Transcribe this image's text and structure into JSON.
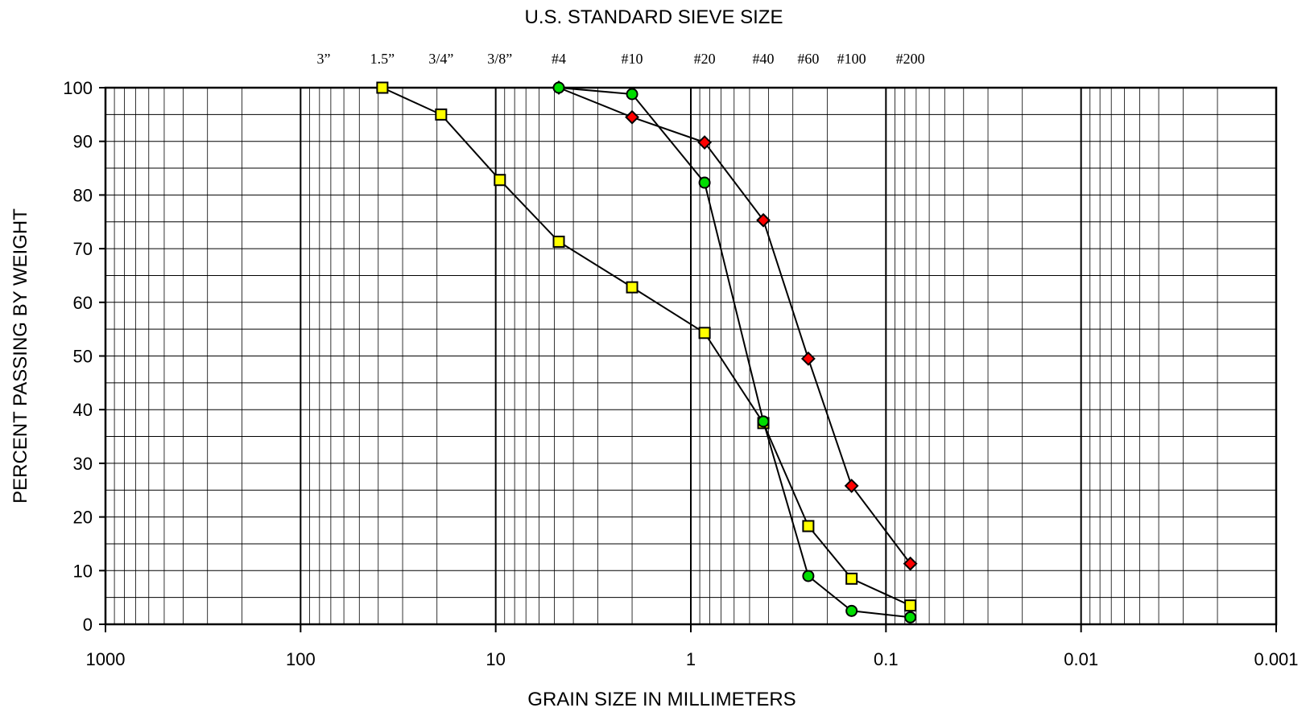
{
  "chart_data": {
    "type": "line",
    "title": "U.S. STANDARD SIEVE SIZE",
    "xlabel": "GRAIN SIZE IN MILLIMETERS",
    "ylabel": "PERCENT PASSING BY WEIGHT",
    "x_scale": "log",
    "x_reversed": true,
    "xlim": [
      1000,
      0.001
    ],
    "ylim": [
      0,
      100
    ],
    "x_ticks": [
      {
        "value": 1000,
        "label": "1000"
      },
      {
        "value": 100,
        "label": "100"
      },
      {
        "value": 10,
        "label": "10"
      },
      {
        "value": 1,
        "label": "1"
      },
      {
        "value": 0.1,
        "label": "0.1"
      },
      {
        "value": 0.01,
        "label": "0.01"
      },
      {
        "value": 0.001,
        "label": "0.001"
      }
    ],
    "y_ticks": [
      0,
      10,
      20,
      30,
      40,
      50,
      60,
      70,
      80,
      90,
      100
    ],
    "sieve_labels": [
      {
        "label": "3”",
        "value": 76.2
      },
      {
        "label": "1.5”",
        "value": 38.1
      },
      {
        "label": "3/4”",
        "value": 19.05
      },
      {
        "label": "3/8”",
        "value": 9.525
      },
      {
        "label": "#4",
        "value": 4.75
      },
      {
        "label": "#10",
        "value": 2.0
      },
      {
        "label": "#20",
        "value": 0.85
      },
      {
        "label": "#40",
        "value": 0.425
      },
      {
        "label": "#60",
        "value": 0.25
      },
      {
        "label": "#100",
        "value": 0.15
      },
      {
        "label": "#200",
        "value": 0.075
      }
    ],
    "grid": true,
    "legend": "none",
    "series": [
      {
        "marker": "square",
        "color": "#ffff00",
        "points": [
          {
            "x": 38.1,
            "y": 100
          },
          {
            "x": 19.05,
            "y": 95
          },
          {
            "x": 9.525,
            "y": 82.8
          },
          {
            "x": 4.75,
            "y": 71.3
          },
          {
            "x": 2.0,
            "y": 62.8
          },
          {
            "x": 0.85,
            "y": 54.3
          },
          {
            "x": 0.425,
            "y": 37.5
          },
          {
            "x": 0.25,
            "y": 18.3
          },
          {
            "x": 0.15,
            "y": 8.5
          },
          {
            "x": 0.075,
            "y": 3.5
          }
        ]
      },
      {
        "marker": "diamond",
        "color": "#ff0000",
        "points": [
          {
            "x": 4.75,
            "y": 100
          },
          {
            "x": 2.0,
            "y": 94.5
          },
          {
            "x": 0.85,
            "y": 89.8
          },
          {
            "x": 0.425,
            "y": 75.3
          },
          {
            "x": 0.25,
            "y": 49.5
          },
          {
            "x": 0.15,
            "y": 25.8
          },
          {
            "x": 0.075,
            "y": 11.3
          }
        ]
      },
      {
        "marker": "circle",
        "color": "#00dd00",
        "points": [
          {
            "x": 4.75,
            "y": 100
          },
          {
            "x": 2.0,
            "y": 98.8
          },
          {
            "x": 0.85,
            "y": 82.3
          },
          {
            "x": 0.425,
            "y": 37.8
          },
          {
            "x": 0.25,
            "y": 9.0
          },
          {
            "x": 0.15,
            "y": 2.5
          },
          {
            "x": 0.075,
            "y": 1.3
          }
        ]
      }
    ]
  }
}
